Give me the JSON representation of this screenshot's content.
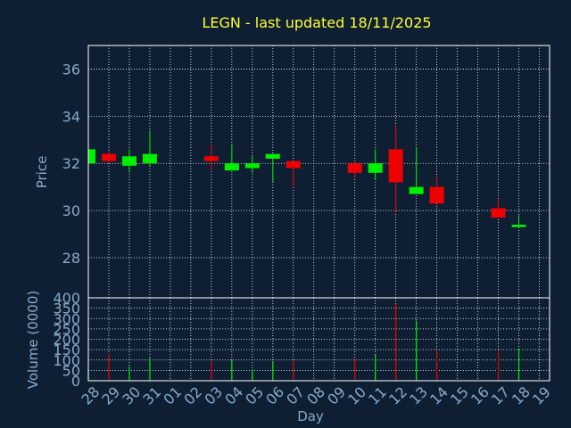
{
  "title": "LEGN - last updated 18/11/2025",
  "colors": {
    "background": "#0f1f33",
    "title": "#ffff33",
    "axis_text": "#8aa8c8",
    "up": "#00ee00",
    "down": "#ee0000",
    "frame": "#ffffff"
  },
  "chart_data": [
    {
      "type": "candlestick",
      "ylabel": "Price",
      "ylim": [
        26.3,
        37
      ],
      "yticks": [
        28,
        30,
        32,
        34,
        36
      ],
      "grid": true,
      "candles": [
        {
          "day": "28",
          "open": 32.0,
          "close": 32.6,
          "high": 32.6,
          "low": 32.0
        },
        {
          "day": "29",
          "open": 32.4,
          "close": 32.1,
          "high": 32.5,
          "low": 32.0
        },
        {
          "day": "30",
          "open": 31.9,
          "close": 32.3,
          "high": 32.6,
          "low": 31.6
        },
        {
          "day": "31",
          "open": 32.0,
          "close": 32.4,
          "high": 33.4,
          "low": 31.9
        },
        {
          "day": "03",
          "open": 32.3,
          "close": 32.1,
          "high": 32.8,
          "low": 31.7
        },
        {
          "day": "04",
          "open": 31.7,
          "close": 32.0,
          "high": 32.8,
          "low": 31.7
        },
        {
          "day": "05",
          "open": 31.8,
          "close": 32.0,
          "high": 32.3,
          "low": 31.6
        },
        {
          "day": "06",
          "open": 32.2,
          "close": 32.4,
          "high": 32.4,
          "low": 31.2
        },
        {
          "day": "07",
          "open": 32.1,
          "close": 31.8,
          "high": 32.1,
          "low": 31.0
        },
        {
          "day": "10",
          "open": 32.0,
          "close": 31.6,
          "high": 32.1,
          "low": 31.4
        },
        {
          "day": "11",
          "open": 31.6,
          "close": 32.0,
          "high": 32.6,
          "low": 31.3
        },
        {
          "day": "12",
          "open": 32.6,
          "close": 31.2,
          "high": 33.6,
          "low": 29.9
        },
        {
          "day": "13",
          "open": 30.7,
          "close": 31.0,
          "high": 32.7,
          "low": 30.7
        },
        {
          "day": "14",
          "open": 31.0,
          "close": 30.3,
          "high": 31.5,
          "low": 30.3
        },
        {
          "day": "17",
          "open": 30.1,
          "close": 29.7,
          "high": 30.5,
          "low": 29.7
        },
        {
          "day": "18",
          "open": 29.3,
          "close": 29.4,
          "high": 29.8,
          "low": 29.3
        }
      ]
    },
    {
      "type": "bar",
      "ylabel": "Volume (0000)",
      "xlabel": "Day",
      "ylim": [
        0,
        400
      ],
      "yticks": [
        0,
        50,
        100,
        150,
        200,
        250,
        300,
        350,
        400
      ],
      "grid": true,
      "categories": [
        "28",
        "29",
        "30",
        "31",
        "01",
        "02",
        "03",
        "04",
        "05",
        "06",
        "07",
        "08",
        "09",
        "10",
        "11",
        "12",
        "13",
        "14",
        "15",
        "16",
        "17",
        "18",
        "19"
      ],
      "bars": [
        {
          "day": "28",
          "value": 40,
          "color": "up"
        },
        {
          "day": "29",
          "value": 130,
          "color": "down"
        },
        {
          "day": "30",
          "value": 70,
          "color": "up"
        },
        {
          "day": "31",
          "value": 110,
          "color": "up"
        },
        {
          "day": "03",
          "value": 95,
          "color": "down"
        },
        {
          "day": "04",
          "value": 100,
          "color": "up"
        },
        {
          "day": "05",
          "value": 55,
          "color": "up"
        },
        {
          "day": "06",
          "value": 95,
          "color": "up"
        },
        {
          "day": "07",
          "value": 95,
          "color": "down"
        },
        {
          "day": "10",
          "value": 105,
          "color": "down"
        },
        {
          "day": "11",
          "value": 125,
          "color": "up"
        },
        {
          "day": "12",
          "value": 370,
          "color": "down"
        },
        {
          "day": "13",
          "value": 290,
          "color": "up"
        },
        {
          "day": "14",
          "value": 145,
          "color": "down"
        },
        {
          "day": "17",
          "value": 145,
          "color": "down"
        },
        {
          "day": "18",
          "value": 155,
          "color": "up"
        }
      ]
    }
  ]
}
